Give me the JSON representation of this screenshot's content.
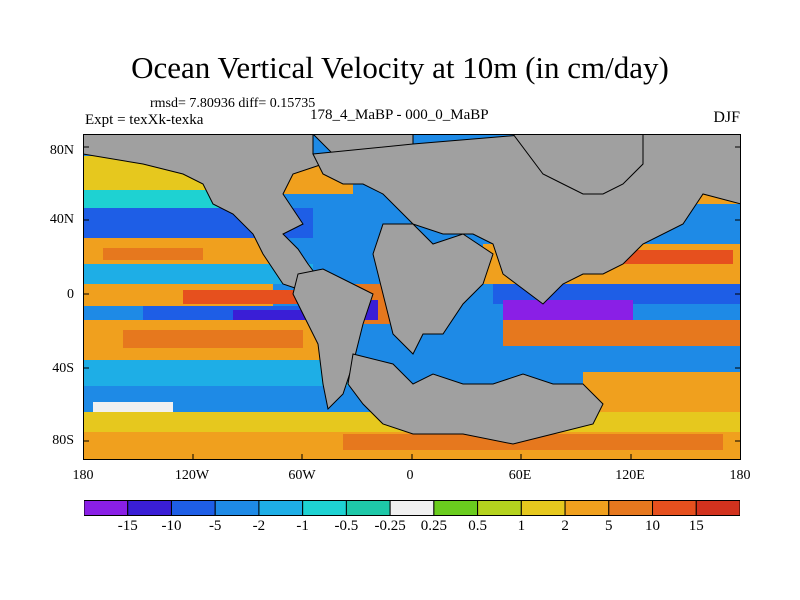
{
  "title": "Ocean Vertical Velocity at 10m (in cm/day)",
  "stats": "rmsd= 7.80936 diff= 0.15735",
  "expt": "Expt = texXk-texka",
  "experiment": "178_4_MaBP - 000_0_MaBP",
  "season": "DJF",
  "lat_labels": [
    "80N",
    "40N",
    "0",
    "40S",
    "80S"
  ],
  "lon_labels": [
    "180",
    "120W",
    "60W",
    "0",
    "60E",
    "120E",
    "180"
  ],
  "colorbar": {
    "colors": [
      "#8a1fe6",
      "#3a1ed6",
      "#1e5ee6",
      "#1e8ae6",
      "#1eaee6",
      "#1ed2d2",
      "#1ec8a8",
      "#f0f0f0",
      "#6acc1e",
      "#b4d21e",
      "#e6c81e",
      "#f0a01e",
      "#e6781e",
      "#e6501e",
      "#d2321e"
    ],
    "labels": [
      "-15",
      "-10",
      "-5",
      "-2",
      "-1",
      "-0.5",
      "-0.25",
      "0.25",
      "0.5",
      "1",
      "2",
      "5",
      "10",
      "15"
    ]
  },
  "colors": {
    "land": "#a0a0a0",
    "ice": "#ffffff"
  }
}
